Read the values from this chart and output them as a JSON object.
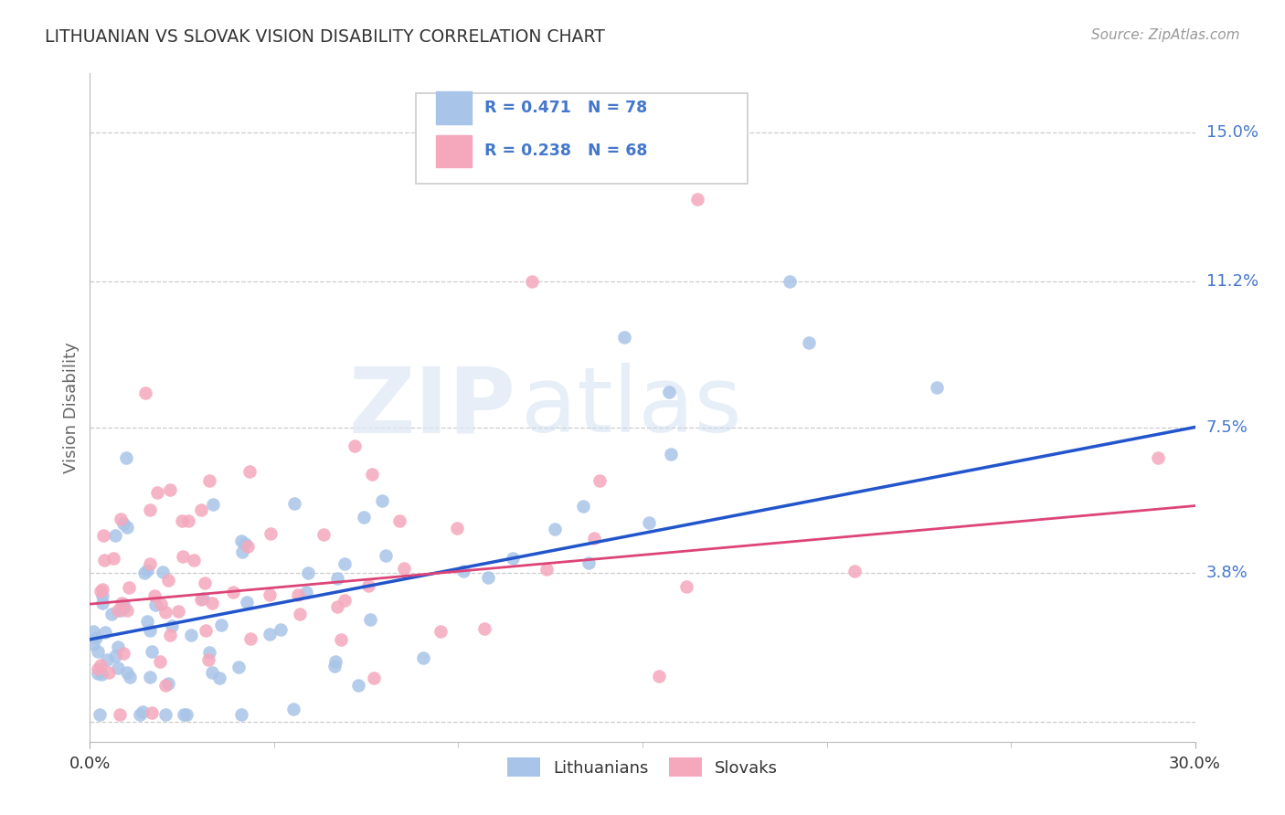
{
  "title": "LITHUANIAN VS SLOVAK VISION DISABILITY CORRELATION CHART",
  "source": "Source: ZipAtlas.com",
  "ylabel": "Vision Disability",
  "xlim": [
    0.0,
    0.3
  ],
  "ylim": [
    -0.005,
    0.165
  ],
  "yticks": [
    0.0,
    0.038,
    0.075,
    0.112,
    0.15
  ],
  "ytick_labels": [
    "",
    "3.8%",
    "7.5%",
    "11.2%",
    "15.0%"
  ],
  "lit_R": "0.471",
  "lit_N": "78",
  "slo_R": "0.238",
  "slo_N": "68",
  "lit_color": "#a8c4e8",
  "slo_color": "#f5a8bc",
  "lit_line_color": "#2255cc",
  "slo_line_color": "#dd4477",
  "legend_lit": "Lithuanians",
  "legend_slo": "Slovaks",
  "watermark_zip": "ZIP",
  "watermark_atlas": "atlas",
  "background_color": "#ffffff",
  "grid_color": "#cccccc",
  "title_color": "#333333",
  "axis_label_color": "#4477cc",
  "lit_line_x0": 0.0,
  "lit_line_y0": 0.021,
  "lit_line_x1": 0.3,
  "lit_line_y1": 0.075,
  "slo_line_x0": 0.0,
  "slo_line_y0": 0.03,
  "slo_line_x1": 0.3,
  "slo_line_y1": 0.055
}
